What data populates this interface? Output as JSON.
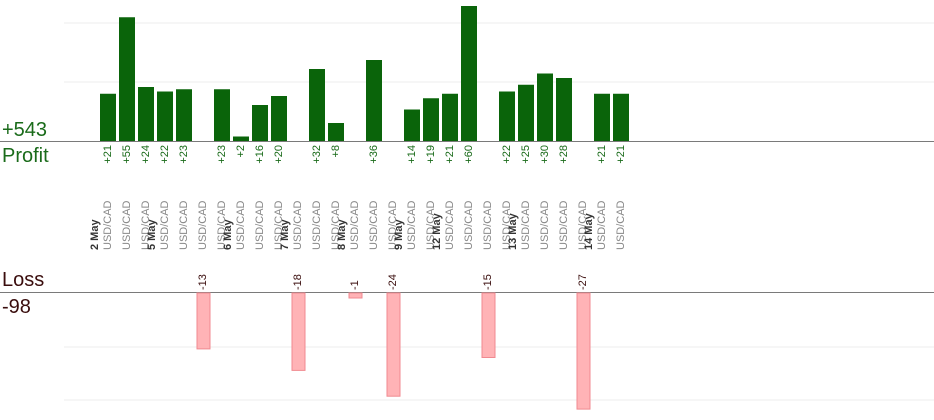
{
  "summary": {
    "profit_total": "+543",
    "profit_label": "Profit",
    "loss_label": "Loss",
    "loss_total": "-98"
  },
  "colors": {
    "profit_bar": "#0a640a",
    "profit_text": "#1a6b1a",
    "loss_bar": "#ffb3b6",
    "loss_text": "#3a0d0d",
    "date_text": "#333333",
    "pair_text": "#888888"
  },
  "chart_data": {
    "type": "bar",
    "title": "",
    "xlabel": "",
    "ylabel": "",
    "profit_series": [
      {
        "day": "2 May",
        "pair": "USD/CAD",
        "value": 21
      },
      {
        "day": "2 May",
        "pair": "USD/CAD",
        "value": 55
      },
      {
        "day": "2 May",
        "pair": "USD/CAD",
        "value": 24
      },
      {
        "day": "5 May",
        "pair": "USD/CAD",
        "value": 22
      },
      {
        "day": "5 May",
        "pair": "USD/CAD",
        "value": 23
      },
      {
        "day": "5 May",
        "pair": "USD/CAD",
        "value": 23
      },
      {
        "day": "6 May",
        "pair": "USD/CAD",
        "value": 2
      },
      {
        "day": "6 May",
        "pair": "USD/CAD",
        "value": 16
      },
      {
        "day": "6 May",
        "pair": "USD/CAD",
        "value": 20
      },
      {
        "day": "7 May",
        "pair": "USD/CAD",
        "value": 32
      },
      {
        "day": "7 May",
        "pair": "USD/CAD",
        "value": 8
      },
      {
        "day": "8 May",
        "pair": "USD/CAD",
        "value": 36
      },
      {
        "day": "9 May",
        "pair": "USD/CAD",
        "value": 14
      },
      {
        "day": "9 May",
        "pair": "USD/CAD",
        "value": 19
      },
      {
        "day": "12 May",
        "pair": "USD/CAD",
        "value": 21
      },
      {
        "day": "12 May",
        "pair": "USD/CAD",
        "value": 60
      },
      {
        "day": "12 May",
        "pair": "USD/CAD",
        "value": 22
      },
      {
        "day": "13 May",
        "pair": "USD/CAD",
        "value": 25
      },
      {
        "day": "13 May",
        "pair": "USD/CAD",
        "value": 30
      },
      {
        "day": "13 May",
        "pair": "USD/CAD",
        "value": 28
      },
      {
        "day": "14 May",
        "pair": "USD/CAD",
        "value": 21
      },
      {
        "day": "14 May",
        "pair": "USD/CAD",
        "value": 21
      }
    ],
    "loss_series": [
      {
        "day": "5 May",
        "pair": "USD/CAD",
        "value": -13
      },
      {
        "day": "7 May",
        "pair": "USD/CAD",
        "value": -18
      },
      {
        "day": "8 May",
        "pair": "USD/CAD",
        "value": -1
      },
      {
        "day": "8 May",
        "pair": "USD/CAD",
        "value": -24
      },
      {
        "day": "12 May",
        "pair": "USD/CAD",
        "value": -15
      },
      {
        "day": "13 May",
        "pair": "USD/CAD",
        "value": -27
      }
    ],
    "slots": [
      {
        "day": "2 May",
        "pair": "USD/CAD",
        "profit": 21
      },
      {
        "pair": "USD/CAD",
        "profit": 55
      },
      {
        "pair": "USD/CAD",
        "profit": 24
      },
      {
        "day": "5 May",
        "pair": "USD/CAD",
        "profit": 22
      },
      {
        "pair": "USD/CAD",
        "profit": 23
      },
      {
        "pair": "USD/CAD",
        "loss": -13
      },
      {
        "pair": "USD/CAD",
        "profit": 23
      },
      {
        "day": "6 May",
        "pair": "USD/CAD",
        "profit": 2
      },
      {
        "pair": "USD/CAD",
        "profit": 16
      },
      {
        "pair": "USD/CAD",
        "profit": 20
      },
      {
        "day": "7 May",
        "pair": "USD/CAD",
        "loss": -18
      },
      {
        "pair": "USD/CAD",
        "profit": 32
      },
      {
        "pair": "USD/CAD",
        "profit": 8
      },
      {
        "day": "8 May",
        "pair": "USD/CAD",
        "loss": -1
      },
      {
        "pair": "USD/CAD",
        "profit": 36
      },
      {
        "pair": "USD/CAD",
        "loss": -24
      },
      {
        "day": "9 May",
        "pair": "USD/CAD",
        "profit": 14
      },
      {
        "pair": "USD/CAD",
        "profit": 19
      },
      {
        "day": "12 May",
        "pair": "USD/CAD",
        "profit": 21
      },
      {
        "pair": "USD/CAD",
        "profit": 60
      },
      {
        "pair": "USD/CAD",
        "loss": -15
      },
      {
        "pair": "USD/CAD",
        "profit": 22
      },
      {
        "day": "13 May",
        "pair": "USD/CAD",
        "profit": 25
      },
      {
        "pair": "USD/CAD",
        "profit": 30
      },
      {
        "pair": "USD/CAD",
        "profit": 28
      },
      {
        "pair": "USD/CAD",
        "loss": -27
      },
      {
        "day": "14 May",
        "pair": "USD/CAD",
        "profit": 21
      },
      {
        "pair": "USD/CAD",
        "profit": 21
      }
    ],
    "grid": true,
    "legend": "none"
  }
}
